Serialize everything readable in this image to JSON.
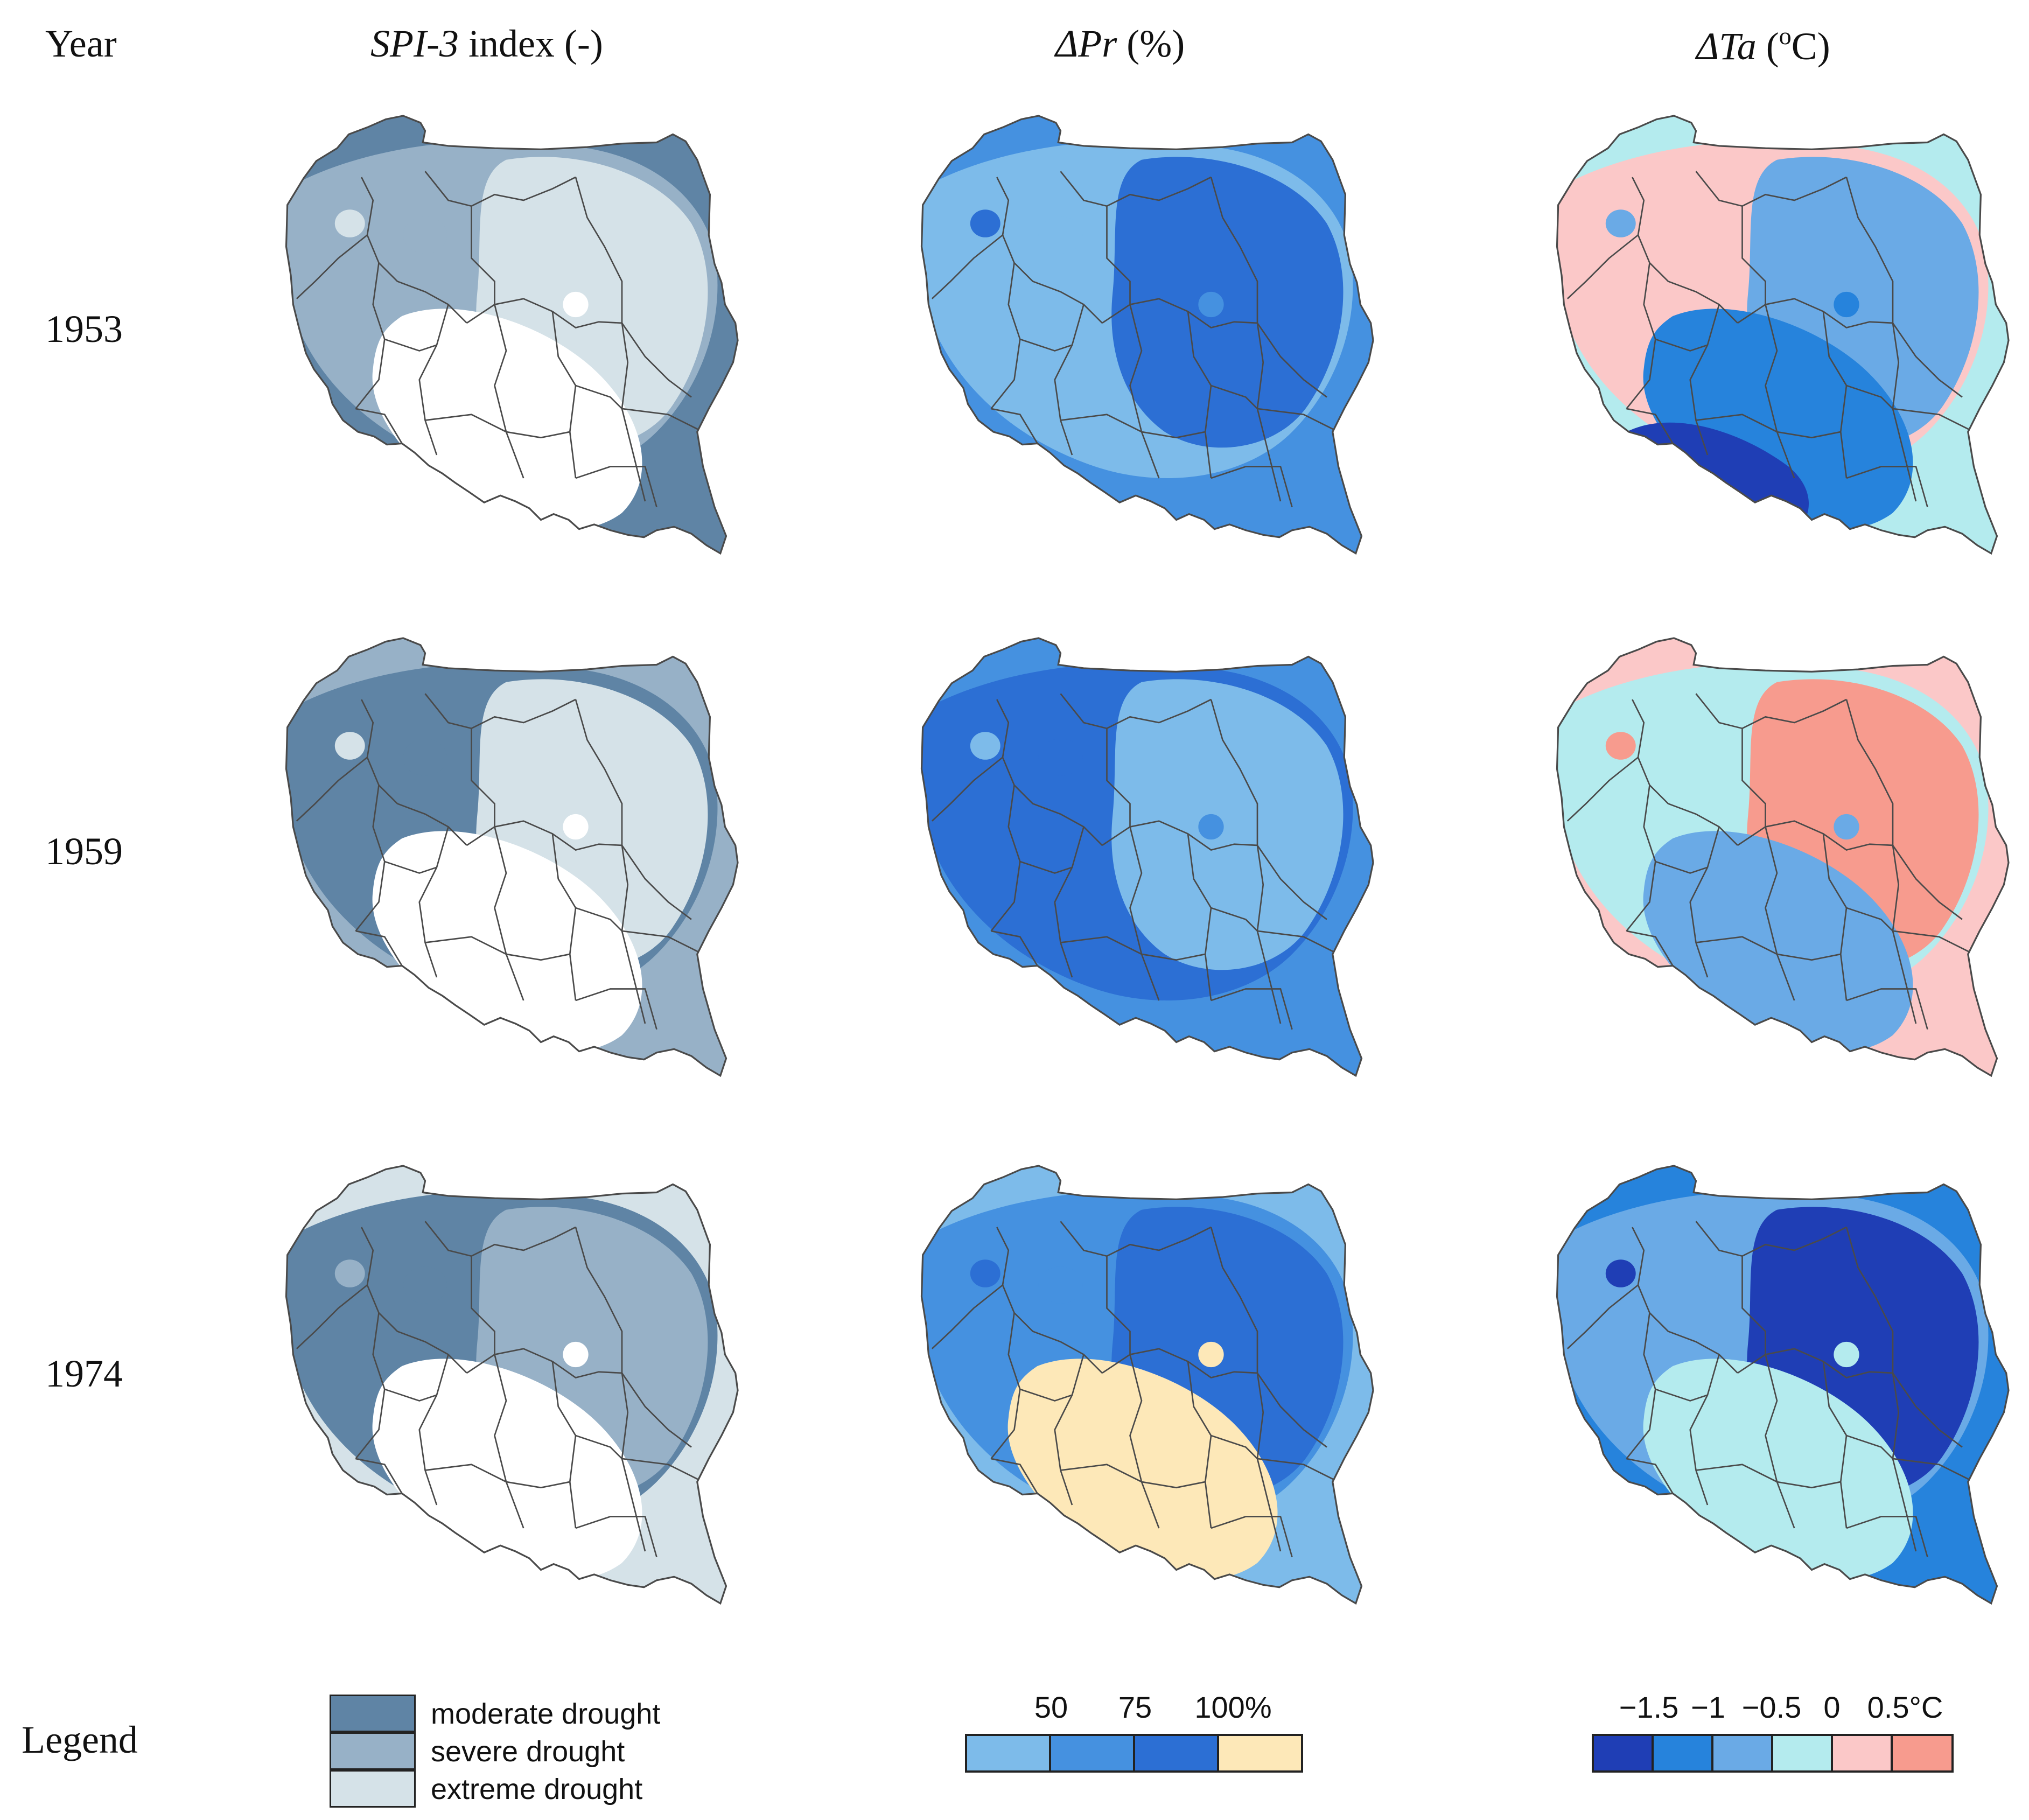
{
  "headers": {
    "year": "Year",
    "spi_name": "SPI-3",
    "spi_rest": " index (-)",
    "pr_name": "ΔPr",
    "pr_unit": " (%)",
    "ta_name": "ΔTa",
    "ta_unit_open": " (",
    "ta_unit_sup": "o",
    "ta_unit_close": "C)"
  },
  "years": [
    "1953",
    "1959",
    "1974"
  ],
  "colors": {
    "spi_moderate": "#5f84a5",
    "spi_severe": "#97b1c7",
    "spi_extreme": "#d5e2e8",
    "pr_50": "#7dbbea",
    "pr_75": "#4591e0",
    "pr_100": "#2c6fd4",
    "pr_over": "#fde8b8",
    "ta_m15": "#1f3eb5",
    "ta_m1": "#2683dc",
    "ta_m05": "#6aaae6",
    "ta_0": "#b4ebee",
    "ta_05": "#fbc8c8",
    "ta_over": "#f79b8e",
    "outline": "#4a4a4a"
  },
  "maps": {
    "spi_1953": [
      "spi_moderate",
      "spi_severe",
      "spi_extreme",
      "none"
    ],
    "spi_1959": [
      "spi_severe",
      "spi_moderate",
      "spi_extreme",
      "none"
    ],
    "spi_1974": [
      "spi_extreme",
      "spi_moderate",
      "spi_severe",
      "none"
    ],
    "pr_1953": [
      "pr_75",
      "pr_50",
      "pr_100"
    ],
    "pr_1959": [
      "pr_75",
      "pr_100",
      "pr_50"
    ],
    "pr_1974": [
      "pr_50",
      "pr_75",
      "pr_100",
      "pr_over"
    ],
    "ta_1953": [
      "ta_0",
      "ta_05",
      "ta_m05",
      "ta_m1",
      "ta_m15"
    ],
    "ta_1959": [
      "ta_05",
      "ta_0",
      "ta_over",
      "ta_m05"
    ],
    "ta_1974": [
      "ta_m1",
      "ta_m05",
      "ta_m15",
      "ta_0"
    ]
  },
  "legend": {
    "title": "Legend",
    "spi_items": [
      {
        "label": "moderate drought",
        "color": "#5f84a5"
      },
      {
        "label": "severe drought",
        "color": "#97b1c7"
      },
      {
        "label": "extreme drought",
        "color": "#d5e2e8"
      }
    ],
    "pr_ticks": [
      "50",
      "75",
      "100%"
    ],
    "pr_colors": [
      "#7dbbea",
      "#4591e0",
      "#2c6fd4",
      "#fde8b8"
    ],
    "ta_ticks": [
      "−1.5",
      "−1",
      "−0.5",
      "0",
      "0.5°C"
    ],
    "ta_colors": [
      "#1f3eb5",
      "#2683dc",
      "#6aaae6",
      "#b4ebee",
      "#fbc8c8",
      "#f79b8e"
    ]
  }
}
